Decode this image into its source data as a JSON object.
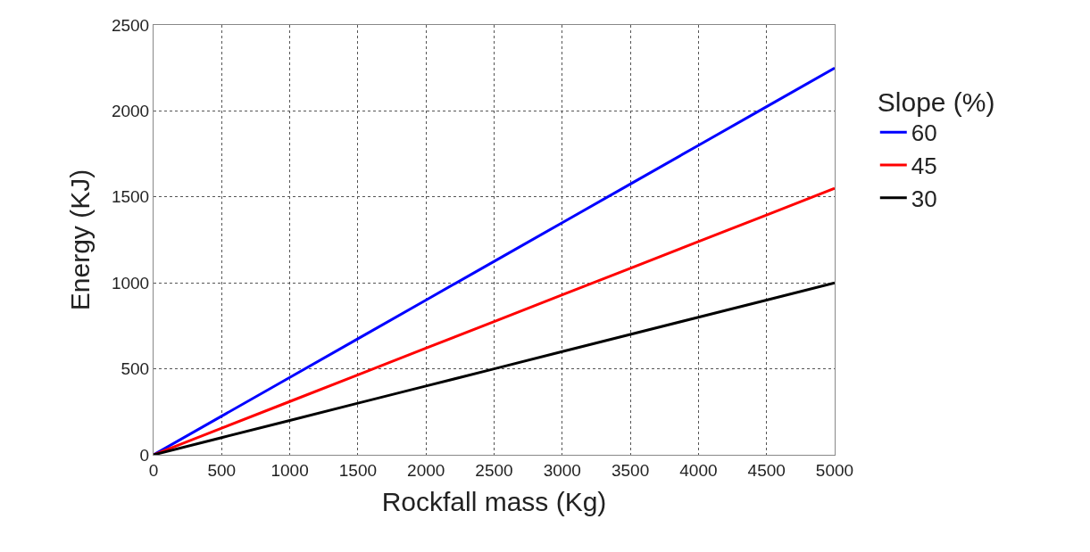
{
  "chart_data": {
    "type": "line",
    "xlabel": "Rockfall mass (Kg)",
    "ylabel": "Energy (KJ)",
    "legend_title": "Slope (%)",
    "x": [
      0,
      500,
      1000,
      1500,
      2000,
      2500,
      3000,
      3500,
      4000,
      4500,
      5000
    ],
    "series": [
      {
        "name": "60",
        "color": "#0000ff",
        "values": [
          0,
          225,
          450,
          675,
          900,
          1125,
          1350,
          1575,
          1800,
          2025,
          2250
        ]
      },
      {
        "name": "45",
        "color": "#ff0000",
        "values": [
          0,
          155,
          310,
          465,
          620,
          775,
          930,
          1085,
          1240,
          1395,
          1550
        ]
      },
      {
        "name": "30",
        "color": "#000000",
        "values": [
          0,
          100,
          200,
          300,
          400,
          500,
          600,
          700,
          800,
          900,
          1000
        ]
      }
    ],
    "xlim": [
      0,
      5000
    ],
    "xticks": [
      0,
      500,
      1000,
      1500,
      2000,
      2500,
      3000,
      3500,
      4000,
      4500,
      5000
    ],
    "ylim": [
      0,
      2500
    ],
    "yticks": [
      0,
      500,
      1000,
      1500,
      2000,
      2500
    ],
    "grid": true,
    "legend": "right",
    "marker": "none",
    "line_style": "solid"
  }
}
